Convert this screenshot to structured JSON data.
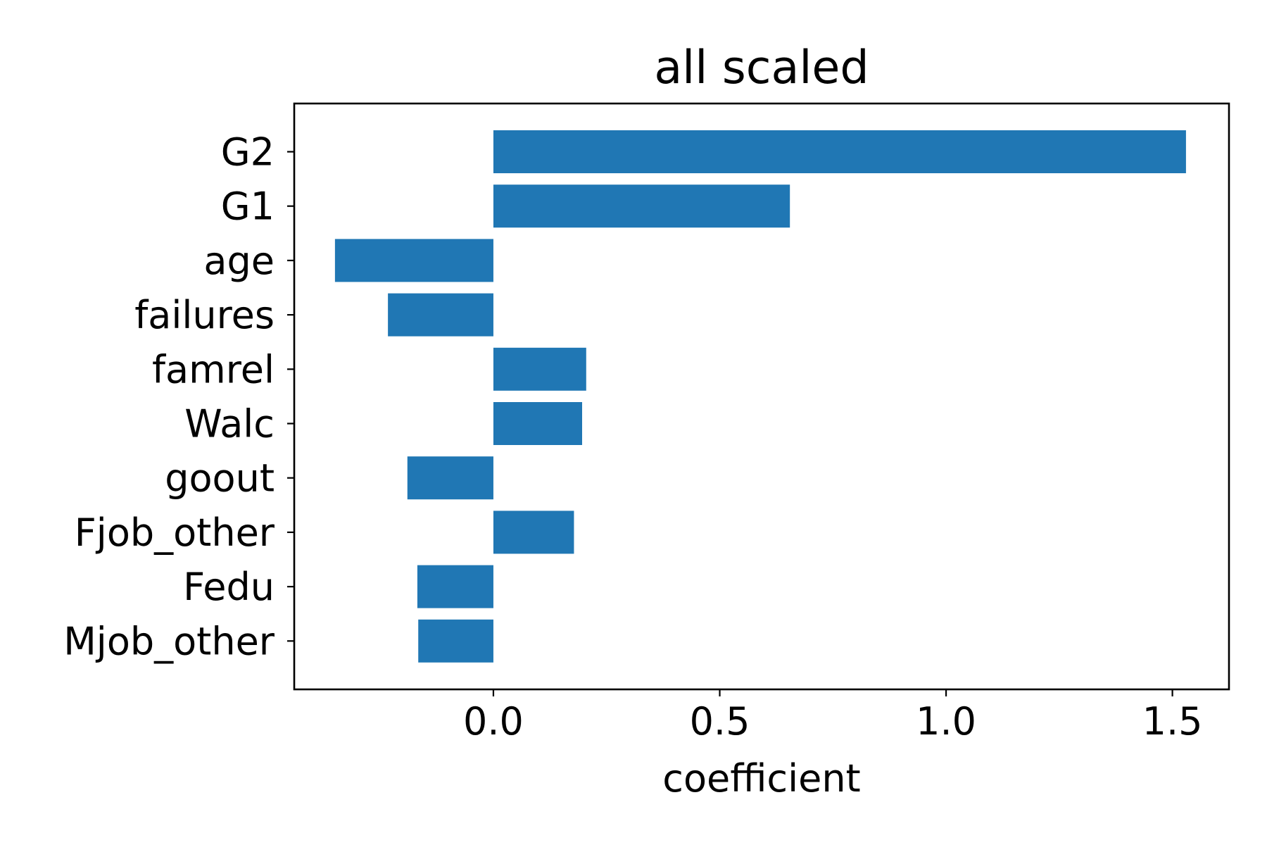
{
  "chart_data": {
    "type": "bar",
    "orientation": "horizontal",
    "title": "all scaled",
    "xlabel": "coefficient",
    "ylabel": "",
    "categories": [
      "G2",
      "G1",
      "age",
      "failures",
      "famrel",
      "Walc",
      "goout",
      "Fjob_other",
      "Fedu",
      "Mjob_other"
    ],
    "values": [
      1.53,
      0.655,
      -0.35,
      -0.233,
      0.205,
      0.196,
      -0.19,
      0.178,
      -0.168,
      -0.166
    ],
    "xlim": [
      -0.44,
      1.625
    ],
    "xticks": [
      0.0,
      0.5,
      1.0,
      1.5
    ],
    "xtick_labels": [
      "0.0",
      "0.5",
      "1.0",
      "1.5"
    ],
    "grid": false,
    "legend": "none",
    "bar_color": "#2077b4"
  }
}
